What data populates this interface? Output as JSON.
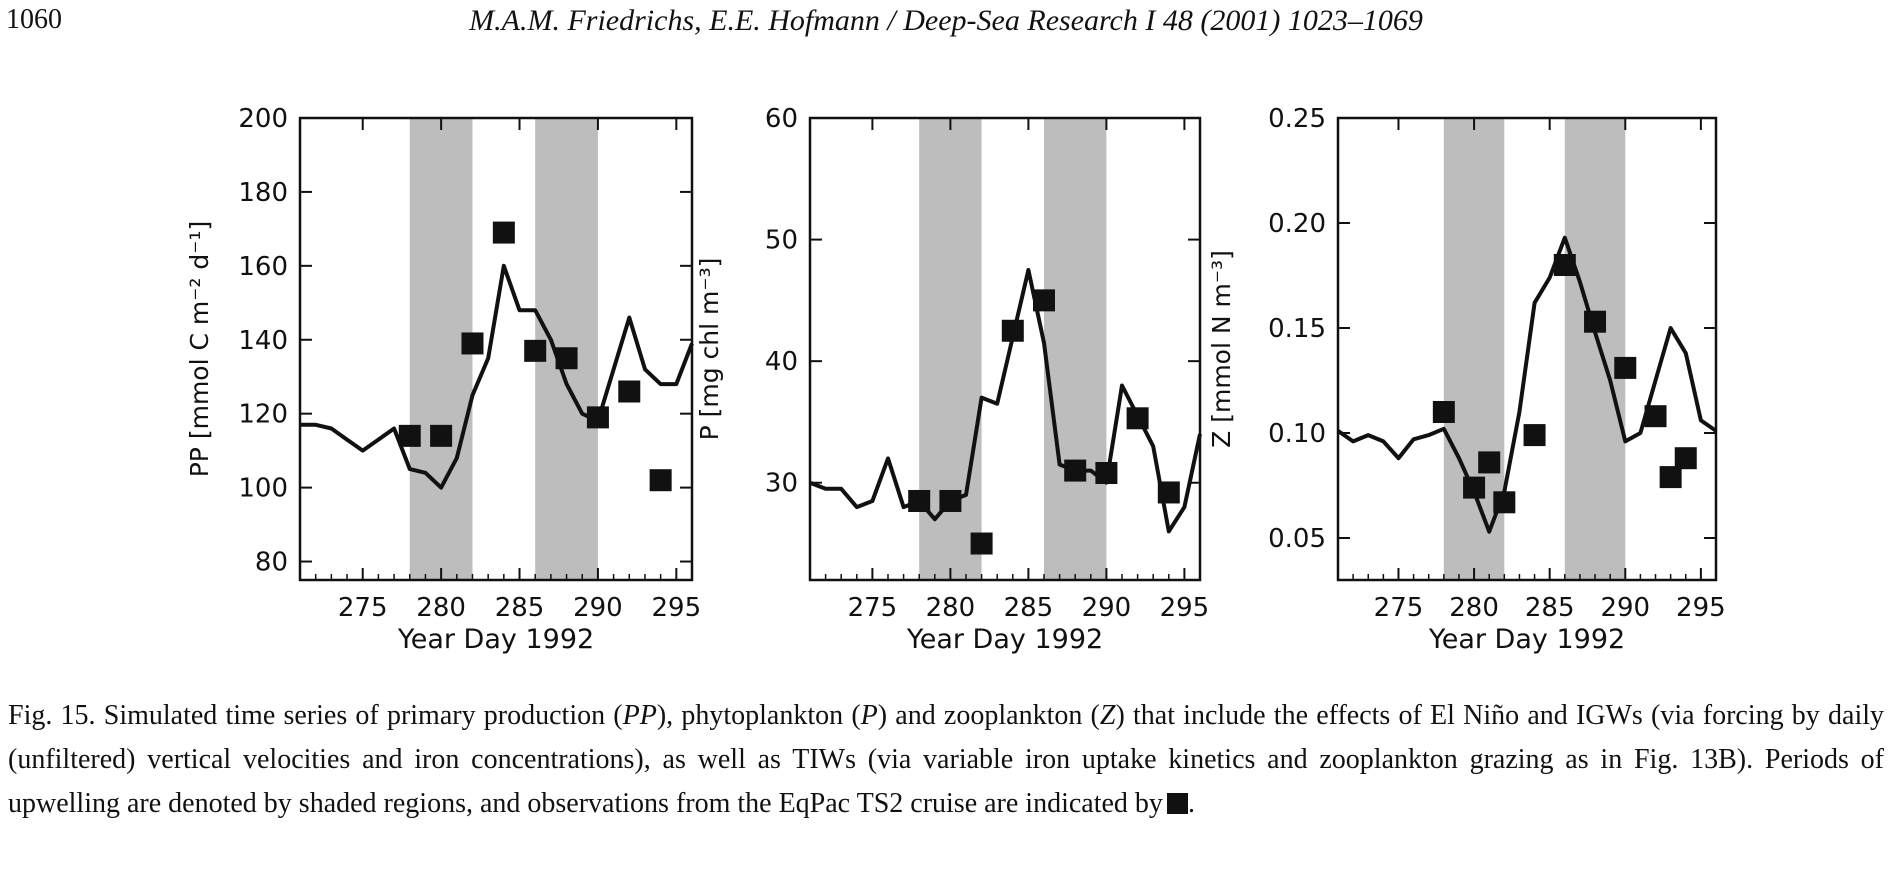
{
  "header": {
    "page_number": "1060",
    "running_title": "M.A.M. Friedrichs, E.E. Hofmann / Deep-Sea Research I 48 (2001) 1023–1069"
  },
  "caption": {
    "p1": "Fig. 15.  Simulated time series of primary production (",
    "pp": "PP",
    "p2": "), phytoplankton (",
    "p": "P",
    "p3": ") and zooplankton (",
    "z": "Z",
    "p4": ") that include the effects of El Niño and IGWs (via forcing by daily (unfiltered) vertical velocities and iron concentrations), as well as TIWs (via variable iron uptake kinetics and zooplankton grazing as in Fig. 13B). Periods of upwelling are denoted by shaded regions, and observations from the EqPac TS2 cruise are indicated by",
    "p5": "."
  },
  "colors": {
    "shade": "#bdbdbd",
    "line": "#111111",
    "marker": "#111111"
  },
  "chart_data": [
    {
      "type": "line",
      "panel": "PP",
      "xlabel": "Year Day 1992",
      "ylabel": "PP [mmol C m⁻² d⁻¹]",
      "xlim": [
        271,
        296
      ],
      "ylim": [
        75,
        200
      ],
      "xticks": [
        275,
        280,
        285,
        290,
        295
      ],
      "yticks": [
        80,
        100,
        120,
        140,
        160,
        180,
        200
      ],
      "ytick_labels": [
        "80",
        "100",
        "120",
        "140",
        "160",
        "180",
        "200"
      ],
      "shaded_periods": [
        [
          278,
          282
        ],
        [
          286,
          290
        ]
      ],
      "model": {
        "x": [
          271,
          272,
          273,
          274,
          275,
          276,
          277,
          278,
          279,
          280,
          281,
          282,
          283,
          284,
          285,
          286,
          287,
          288,
          289,
          290,
          291,
          292,
          293,
          294,
          295,
          296
        ],
        "y": [
          117,
          117,
          116,
          113,
          110,
          113,
          116,
          105,
          104,
          100,
          108,
          125,
          135,
          160,
          148,
          148,
          140,
          128,
          120,
          118,
          132,
          146,
          132,
          128,
          128,
          139
        ]
      },
      "observations": {
        "x": [
          278,
          280,
          282,
          284,
          286,
          288,
          290,
          292,
          294
        ],
        "y": [
          114,
          114,
          139,
          169,
          137,
          135,
          119,
          126,
          102
        ]
      }
    },
    {
      "type": "line",
      "panel": "P",
      "xlabel": "Year Day 1992",
      "ylabel": "P [mg chl m⁻³]",
      "xlim": [
        271,
        296
      ],
      "ylim": [
        22,
        60
      ],
      "xticks": [
        275,
        280,
        285,
        290,
        295
      ],
      "yticks": [
        30,
        40,
        50,
        60
      ],
      "ytick_labels": [
        "30",
        "40",
        "50",
        "60"
      ],
      "shaded_periods": [
        [
          278,
          282
        ],
        [
          286,
          290
        ]
      ],
      "model": {
        "x": [
          271,
          272,
          273,
          274,
          275,
          276,
          277,
          278,
          279,
          280,
          281,
          282,
          283,
          284,
          285,
          286,
          287,
          288,
          289,
          290,
          291,
          292,
          293,
          294,
          295,
          296
        ],
        "y": [
          30,
          29.5,
          29.5,
          28,
          28.5,
          32,
          28,
          28.5,
          27,
          28.5,
          29,
          37,
          36.5,
          42,
          47.5,
          41.5,
          31.5,
          31,
          31,
          30,
          38,
          35.5,
          33,
          26,
          28,
          34
        ]
      },
      "observations": {
        "x": [
          278,
          280,
          282,
          284,
          286,
          288,
          290,
          292,
          294
        ],
        "y": [
          28.5,
          28.5,
          25,
          42.5,
          45,
          31,
          30.8,
          35.3,
          29.2
        ]
      }
    },
    {
      "type": "line",
      "panel": "Z",
      "xlabel": "Year Day 1992",
      "ylabel": "Z [mmol N m⁻³]",
      "xlim": [
        271,
        296
      ],
      "ylim": [
        0.03,
        0.25
      ],
      "xticks": [
        275,
        280,
        285,
        290,
        295
      ],
      "yticks": [
        0.05,
        0.1,
        0.15,
        0.2,
        0.25
      ],
      "ytick_labels": [
        "0.05",
        "0.10",
        "0.15",
        "0.20",
        "0.25"
      ],
      "shaded_periods": [
        [
          278,
          282
        ],
        [
          286,
          290
        ]
      ],
      "model": {
        "x": [
          271,
          272,
          273,
          274,
          275,
          276,
          277,
          278,
          279,
          280,
          281,
          282,
          283,
          284,
          285,
          286,
          287,
          288,
          289,
          290,
          291,
          292,
          293,
          294,
          295,
          296
        ],
        "y": [
          0.101,
          0.096,
          0.099,
          0.096,
          0.088,
          0.097,
          0.099,
          0.102,
          0.088,
          0.072,
          0.053,
          0.072,
          0.11,
          0.162,
          0.174,
          0.193,
          0.172,
          0.148,
          0.125,
          0.096,
          0.1,
          0.125,
          0.15,
          0.138,
          0.106,
          0.101
        ]
      },
      "observations": {
        "x": [
          278,
          280,
          281,
          282,
          284,
          286,
          288,
          290,
          292,
          293,
          294
        ],
        "y": [
          0.11,
          0.074,
          0.086,
          0.067,
          0.099,
          0.18,
          0.153,
          0.131,
          0.108,
          0.079,
          0.088
        ]
      }
    }
  ]
}
